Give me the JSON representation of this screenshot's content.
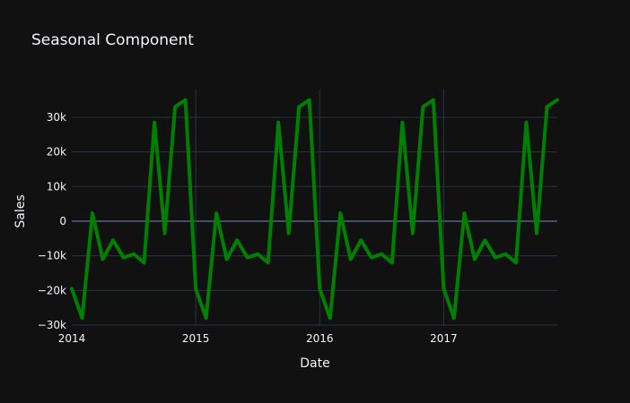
{
  "chart_data": {
    "type": "line",
    "title": "Seasonal Component",
    "xlabel": "Date",
    "ylabel": "Sales",
    "xlim": [
      "2014-01",
      "2017-12"
    ],
    "ylim": [
      -30000,
      38000
    ],
    "grid": true,
    "legend": "none",
    "line_color": "#008000",
    "x_ticks": [
      {
        "value": "2014-01",
        "label": "2014"
      },
      {
        "value": "2015-01",
        "label": "2015"
      },
      {
        "value": "2016-01",
        "label": "2016"
      },
      {
        "value": "2017-01",
        "label": "2017"
      }
    ],
    "y_ticks": [
      {
        "value": -30000,
        "label": "−30k"
      },
      {
        "value": -20000,
        "label": "−20k"
      },
      {
        "value": -10000,
        "label": "−10k"
      },
      {
        "value": 0,
        "label": "0"
      },
      {
        "value": 10000,
        "label": "10k"
      },
      {
        "value": 20000,
        "label": "20k"
      },
      {
        "value": 30000,
        "label": "30k"
      }
    ],
    "series": [
      {
        "x": [
          "2014-01",
          "2014-02",
          "2014-03",
          "2014-04",
          "2014-05",
          "2014-06",
          "2014-07",
          "2014-08",
          "2014-09",
          "2014-10",
          "2014-11",
          "2014-12",
          "2015-01",
          "2015-02",
          "2015-03",
          "2015-04",
          "2015-05",
          "2015-06",
          "2015-07",
          "2015-08",
          "2015-09",
          "2015-10",
          "2015-11",
          "2015-12",
          "2016-01",
          "2016-02",
          "2016-03",
          "2016-04",
          "2016-05",
          "2016-06",
          "2016-07",
          "2016-08",
          "2016-09",
          "2016-10",
          "2016-11",
          "2016-12",
          "2017-01",
          "2017-02",
          "2017-03",
          "2017-04",
          "2017-05",
          "2017-06",
          "2017-07",
          "2017-08",
          "2017-09",
          "2017-10",
          "2017-11",
          "2017-12"
        ],
        "values": [
          -19500,
          -28000,
          2300,
          -11000,
          -5500,
          -10500,
          -9500,
          -12000,
          28500,
          -3500,
          33000,
          35000,
          -19500,
          -28000,
          2300,
          -11000,
          -5500,
          -10500,
          -9500,
          -12000,
          28500,
          -3500,
          33000,
          35000,
          -19500,
          -28000,
          2300,
          -11000,
          -5500,
          -10500,
          -9500,
          -12000,
          28500,
          -3500,
          33000,
          35000,
          -19500,
          -28000,
          2300,
          -11000,
          -5500,
          -10500,
          -9500,
          -12000,
          28500,
          -3500,
          33000,
          35000
        ]
      }
    ]
  }
}
